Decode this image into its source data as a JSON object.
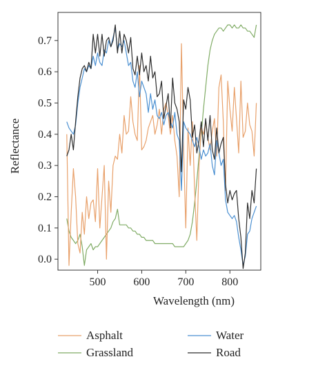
{
  "chart_data": {
    "type": "line",
    "xlabel": "Wavelength (nm)",
    "ylabel": "Reflectance",
    "xlim": [
      410,
      870
    ],
    "ylim": [
      -0.035,
      0.79
    ],
    "xticks": [
      "500",
      "600",
      "700",
      "800"
    ],
    "xtick_values": [
      500,
      600,
      700,
      800
    ],
    "yticks": [
      "0.0",
      "0.1",
      "0.2",
      "0.3",
      "0.4",
      "0.5",
      "0.6",
      "0.7"
    ],
    "ytick_values": [
      0.0,
      0.1,
      0.2,
      0.3,
      0.4,
      0.5,
      0.6,
      0.7
    ],
    "grid": false,
    "legend_position": "bottom",
    "x": [
      430,
      435,
      440,
      445,
      450,
      455,
      460,
      465,
      470,
      475,
      480,
      485,
      490,
      495,
      500,
      505,
      510,
      515,
      520,
      525,
      530,
      535,
      540,
      545,
      550,
      555,
      560,
      565,
      570,
      575,
      580,
      585,
      590,
      595,
      600,
      605,
      610,
      615,
      620,
      625,
      630,
      635,
      640,
      645,
      650,
      655,
      660,
      665,
      670,
      675,
      680,
      685,
      690,
      695,
      700,
      705,
      710,
      715,
      720,
      725,
      730,
      735,
      740,
      745,
      750,
      755,
      760,
      765,
      770,
      775,
      780,
      785,
      790,
      795,
      800,
      805,
      810,
      815,
      820,
      825,
      830,
      835,
      840,
      845,
      850,
      855,
      860
    ],
    "series": [
      {
        "name": "Asphalt",
        "color": "#e8a06a",
        "values": [
          0.4,
          -0.02,
          0.15,
          0.29,
          0.2,
          0.05,
          0.02,
          0.15,
          0.08,
          0.2,
          0.13,
          0.18,
          0.19,
          0.12,
          0.29,
          0.1,
          0.2,
          0.3,
          0.0,
          0.25,
          0.15,
          0.3,
          0.33,
          0.32,
          0.4,
          0.34,
          0.46,
          0.4,
          0.41,
          0.52,
          0.44,
          0.4,
          0.38,
          0.62,
          0.35,
          0.36,
          0.38,
          0.42,
          0.44,
          0.46,
          0.4,
          0.43,
          0.48,
          0.4,
          0.48,
          0.5,
          0.46,
          0.4,
          0.46,
          0.38,
          0.33,
          0.2,
          0.69,
          0.35,
          0.1,
          0.42,
          0.3,
          0.44,
          0.22,
          0.06,
          0.3,
          0.42,
          0.4,
          0.44,
          0.39,
          0.35,
          0.41,
          0.45,
          0.33,
          0.55,
          0.59,
          0.44,
          0.22,
          0.57,
          0.48,
          0.41,
          0.55,
          0.45,
          0.34,
          0.57,
          0.39,
          0.41,
          0.5,
          0.43,
          0.41,
          0.33,
          0.5
        ]
      },
      {
        "name": "Grassland",
        "color": "#7fab64",
        "values": [
          0.13,
          0.09,
          0.07,
          0.06,
          0.05,
          0.06,
          0.08,
          0.04,
          -0.02,
          0.03,
          0.04,
          0.05,
          0.03,
          0.04,
          0.04,
          0.05,
          0.06,
          0.07,
          0.08,
          0.09,
          0.1,
          0.12,
          0.13,
          0.16,
          0.11,
          0.11,
          0.11,
          0.11,
          0.1,
          0.1,
          0.09,
          0.09,
          0.08,
          0.08,
          0.07,
          0.07,
          0.06,
          0.06,
          0.06,
          0.06,
          0.05,
          0.05,
          0.05,
          0.05,
          0.05,
          0.05,
          0.05,
          0.05,
          0.05,
          0.04,
          0.04,
          0.04,
          0.04,
          0.04,
          0.05,
          0.06,
          0.08,
          0.12,
          0.18,
          0.25,
          0.33,
          0.4,
          0.48,
          0.55,
          0.62,
          0.67,
          0.7,
          0.72,
          0.73,
          0.74,
          0.74,
          0.73,
          0.74,
          0.75,
          0.75,
          0.74,
          0.75,
          0.74,
          0.74,
          0.75,
          0.74,
          0.74,
          0.73,
          0.73,
          0.72,
          0.71,
          0.75
        ]
      },
      {
        "name": "Water",
        "color": "#4a8fd1",
        "values": [
          0.44,
          0.42,
          0.41,
          0.4,
          0.43,
          0.5,
          0.55,
          0.58,
          0.61,
          0.6,
          0.62,
          0.61,
          0.65,
          0.62,
          0.66,
          0.63,
          0.62,
          0.67,
          0.66,
          0.7,
          0.68,
          0.71,
          0.74,
          0.67,
          0.69,
          0.68,
          0.7,
          0.66,
          0.62,
          0.63,
          0.57,
          0.55,
          0.6,
          0.52,
          0.57,
          0.55,
          0.53,
          0.47,
          0.53,
          0.48,
          0.51,
          0.46,
          0.45,
          0.47,
          0.43,
          0.46,
          0.47,
          0.44,
          0.42,
          0.47,
          0.4,
          0.38,
          0.22,
          0.44,
          0.42,
          0.41,
          0.4,
          0.38,
          0.36,
          0.39,
          0.36,
          0.32,
          0.35,
          0.33,
          0.34,
          0.37,
          0.3,
          0.27,
          0.38,
          0.34,
          0.3,
          0.32,
          0.19,
          0.15,
          0.14,
          0.13,
          0.14,
          0.12,
          0.07,
          0.03,
          -0.02,
          0.01,
          0.08,
          0.09,
          0.13,
          0.15,
          0.17
        ]
      },
      {
        "name": "Road",
        "color": "#2b2b2b",
        "values": [
          0.33,
          0.35,
          0.4,
          0.35,
          0.44,
          0.52,
          0.58,
          0.61,
          0.62,
          0.6,
          0.63,
          0.61,
          0.72,
          0.66,
          0.72,
          0.65,
          0.72,
          0.65,
          0.7,
          0.71,
          0.68,
          0.7,
          0.75,
          0.66,
          0.73,
          0.66,
          0.72,
          0.7,
          0.66,
          0.71,
          0.61,
          0.59,
          0.65,
          0.59,
          0.66,
          0.6,
          0.62,
          0.57,
          0.65,
          0.58,
          0.6,
          0.52,
          0.53,
          0.57,
          0.45,
          0.49,
          0.53,
          0.42,
          0.58,
          0.5,
          0.48,
          0.44,
          0.28,
          0.51,
          0.48,
          0.55,
          0.51,
          0.39,
          0.43,
          0.34,
          0.38,
          0.44,
          0.36,
          0.45,
          0.38,
          0.46,
          0.35,
          0.32,
          0.42,
          0.34,
          0.37,
          0.39,
          0.24,
          0.18,
          0.22,
          0.19,
          0.21,
          0.22,
          0.13,
          0.07,
          -0.03,
          0.02,
          0.18,
          0.13,
          0.22,
          0.18,
          0.29
        ]
      }
    ]
  }
}
